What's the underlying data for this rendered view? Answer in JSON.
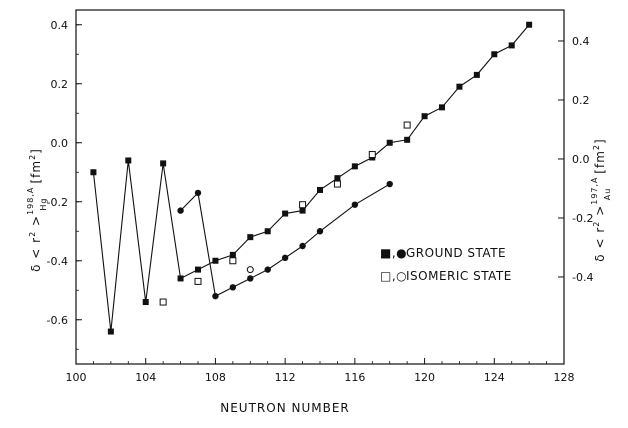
{
  "chart_data": {
    "type": "scatter",
    "xlabel": "NEUTRON NUMBER",
    "ylabel_left": {
      "prefix": "δ < r",
      "sup": "2",
      "mid": " >",
      "sub_sup": "198,A",
      "sub": "Hg",
      "unit": "[fm",
      "unit_sup": "2",
      "unit_close": "]"
    },
    "ylabel_right": {
      "prefix": "δ < r",
      "sup": "2",
      "mid": " >",
      "sub_sup": "197,A",
      "sub": "Au",
      "unit": "[fm",
      "unit_sup": "2",
      "unit_close": "]"
    },
    "xlim": [
      100,
      128
    ],
    "ylim_left": [
      -0.75,
      0.45
    ],
    "ylim_right_note": "right axis offset from left axis",
    "x_ticks": [
      "100",
      "104",
      "108",
      "112",
      "116",
      "120",
      "124",
      "128"
    ],
    "y_ticks_left": [
      "0.4",
      "0.2",
      "0.0",
      "-0.2",
      "-0.4",
      "-0.6"
    ],
    "y_ticks_right": [
      "0.4",
      "0.2",
      "0.0",
      "-0.2",
      "-0.4"
    ],
    "legend": {
      "ground": {
        "symbols": "■,●",
        "label": "GROUND STATE"
      },
      "isomeric": {
        "symbols": "□,○",
        "label": "ISOMERIC STATE"
      },
      "position": "center-right"
    },
    "series": [
      {
        "element": "Hg",
        "state": "ground",
        "marker": "filled-square",
        "connected": true,
        "x": [
          101,
          102,
          103,
          104,
          105,
          106,
          107,
          108,
          109,
          110,
          111,
          112,
          113,
          114,
          115,
          116,
          117,
          118,
          119,
          120,
          121,
          122,
          123,
          124,
          125,
          126
        ],
        "y": [
          -0.1,
          -0.64,
          -0.06,
          -0.54,
          -0.07,
          -0.46,
          -0.43,
          -0.4,
          -0.38,
          -0.32,
          -0.3,
          -0.24,
          -0.23,
          -0.16,
          -0.12,
          -0.08,
          -0.05,
          0.0,
          0.01,
          0.09,
          0.12,
          0.19,
          0.23,
          0.3,
          0.33,
          0.4
        ]
      },
      {
        "element": "Hg",
        "state": "isomeric",
        "marker": "open-square",
        "connected": false,
        "x": [
          105,
          107,
          109,
          113,
          115,
          117,
          119
        ],
        "y": [
          -0.54,
          -0.47,
          -0.4,
          -0.21,
          -0.14,
          -0.04,
          0.06
        ]
      },
      {
        "element": "Au",
        "state": "ground",
        "marker": "filled-circle",
        "connected": true,
        "x": [
          106,
          107,
          108,
          109,
          110,
          111,
          112,
          113,
          114,
          116,
          118
        ],
        "y": [
          -0.23,
          -0.17,
          -0.52,
          -0.49,
          -0.46,
          -0.43,
          -0.39,
          -0.35,
          -0.3,
          -0.21,
          -0.14
        ]
      },
      {
        "element": "Au",
        "state": "isomeric",
        "marker": "open-circle",
        "connected": false,
        "x": [
          110
        ],
        "y": [
          -0.43
        ]
      }
    ]
  }
}
